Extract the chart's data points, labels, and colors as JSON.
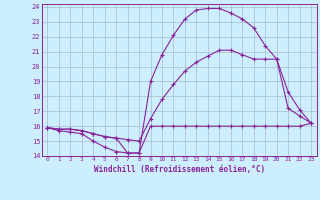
{
  "xlabel": "Windchill (Refroidissement éolien,°C)",
  "xlim": [
    -0.5,
    23.5
  ],
  "ylim": [
    14,
    24.2
  ],
  "yticks": [
    14,
    15,
    16,
    17,
    18,
    19,
    20,
    21,
    22,
    23,
    24
  ],
  "xticks": [
    0,
    1,
    2,
    3,
    4,
    5,
    6,
    7,
    8,
    9,
    10,
    11,
    12,
    13,
    14,
    15,
    16,
    17,
    18,
    19,
    20,
    21,
    22,
    23
  ],
  "bg_color": "#cceeff",
  "grid_color": "#aabbcc",
  "line_color": "#882299",
  "line1_x": [
    0,
    1,
    2,
    3,
    4,
    5,
    6,
    7,
    8,
    9,
    10,
    11,
    12,
    13,
    14,
    15,
    16,
    17,
    18,
    19,
    20,
    21,
    22,
    23
  ],
  "line1_y": [
    15.9,
    15.7,
    15.6,
    15.5,
    15.0,
    14.6,
    14.3,
    14.2,
    14.2,
    16.0,
    16.0,
    16.0,
    16.0,
    16.0,
    16.0,
    16.0,
    16.0,
    16.0,
    16.0,
    16.0,
    16.0,
    16.0,
    16.0,
    16.2
  ],
  "line2_x": [
    0,
    1,
    2,
    3,
    4,
    5,
    6,
    7,
    8,
    9,
    10,
    11,
    12,
    13,
    14,
    15,
    16,
    17,
    18,
    19,
    20,
    21,
    22,
    23
  ],
  "line2_y": [
    15.9,
    15.8,
    15.8,
    15.7,
    15.5,
    15.3,
    15.2,
    15.1,
    15.0,
    16.5,
    17.8,
    18.8,
    19.7,
    20.3,
    20.7,
    21.1,
    21.1,
    20.8,
    20.5,
    20.5,
    20.5,
    17.2,
    16.7,
    16.2
  ],
  "line3_x": [
    0,
    1,
    2,
    3,
    4,
    5,
    6,
    7,
    8,
    9,
    10,
    11,
    12,
    13,
    14,
    15,
    16,
    17,
    18,
    19,
    20,
    21,
    22,
    23
  ],
  "line3_y": [
    15.9,
    15.8,
    15.8,
    15.7,
    15.5,
    15.3,
    15.2,
    14.2,
    14.2,
    19.0,
    20.8,
    22.1,
    23.2,
    23.8,
    23.9,
    23.9,
    23.6,
    23.2,
    22.6,
    21.4,
    20.5,
    18.3,
    17.1,
    16.2
  ]
}
